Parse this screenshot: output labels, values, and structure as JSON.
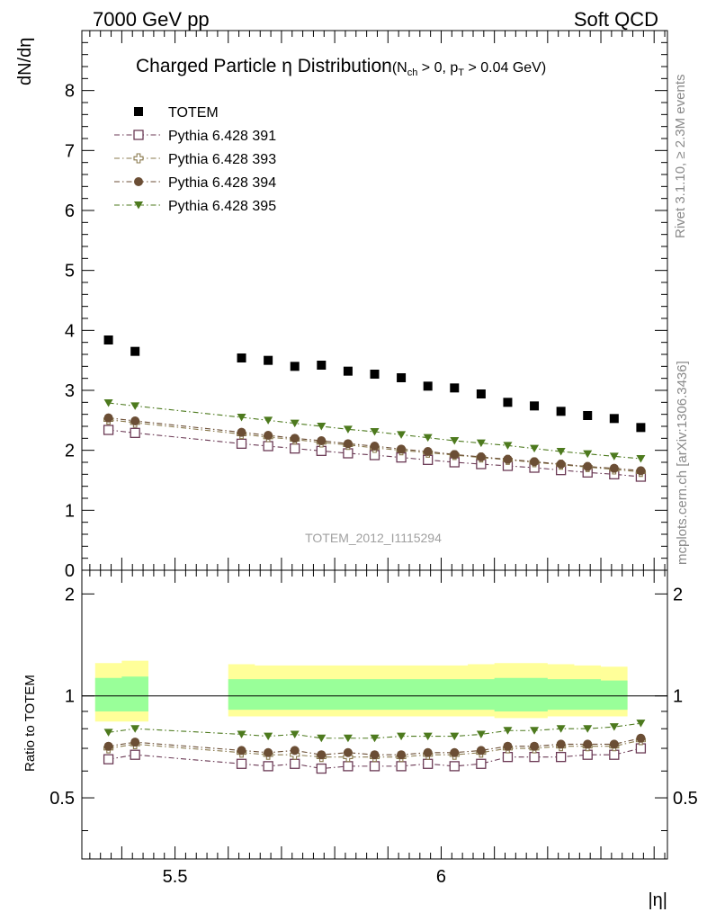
{
  "header": {
    "left": "7000 GeV pp",
    "right": "Soft QCD"
  },
  "side": {
    "rivet": "Rivet 3.1.10, ≥ 2.3M events",
    "mcplots": "mcplots.cern.ch [arXiv:1306.3436]"
  },
  "chart_data": {
    "type": "scatter",
    "title": "Charged Particle η Distribution",
    "title_cut": {
      "nch_var": "N",
      "nch_sub": "ch",
      "nch_cond": " > 0, ",
      "pt_var": "p",
      "pt_sub": "T",
      "pt_cond": " > 0.04 GeV"
    },
    "watermark": "TOTEM_2012_I1115294",
    "xlabel": "|η|",
    "ylabel": "dN/dη",
    "ratio_ylabel": "Ratio to TOTEM",
    "xlim": [
      5.325,
      6.425
    ],
    "ylim": [
      0,
      9
    ],
    "ratio_ylim": [
      0.33,
      2.35
    ],
    "x_ticks": [
      "5.5",
      "6"
    ],
    "y_ticks": [
      "0",
      "1",
      "2",
      "3",
      "4",
      "5",
      "6",
      "7",
      "8"
    ],
    "ratio_ticks_left": [
      "0.5",
      "1",
      "2"
    ],
    "ratio_ticks_right": [
      "0.5",
      "1",
      "2"
    ],
    "x": [
      5.375,
      5.425,
      5.625,
      5.675,
      5.725,
      5.775,
      5.825,
      5.875,
      5.925,
      5.975,
      6.025,
      6.075,
      6.125,
      6.175,
      6.225,
      6.275,
      6.325,
      6.375
    ],
    "data_series": {
      "name": "TOTEM",
      "x": [
        5.375,
        5.425,
        5.625,
        5.675,
        5.725,
        5.775,
        5.825,
        5.875,
        5.925,
        5.975,
        6.025,
        6.075,
        6.125,
        6.175,
        6.225,
        6.275,
        6.325,
        6.375
      ],
      "values": [
        3.84,
        3.65,
        3.54,
        3.5,
        3.4,
        3.42,
        3.32,
        3.27,
        3.21,
        3.07,
        3.04,
        2.94,
        2.8,
        2.74,
        2.65,
        2.58,
        2.53,
        2.38
      ],
      "color": "#000000"
    },
    "error_bands": {
      "x_edges": [
        5.35,
        5.4,
        5.45,
        5.6,
        5.65,
        5.7,
        5.75,
        5.8,
        5.85,
        5.9,
        5.95,
        6.0,
        6.05,
        6.1,
        6.15,
        6.2,
        6.25,
        6.3,
        6.35,
        6.4
      ],
      "gap": [
        5.45,
        5.6
      ],
      "inner_up": [
        1.13,
        1.14,
        1.12,
        1.12,
        1.12,
        1.12,
        1.12,
        1.12,
        1.12,
        1.12,
        1.12,
        1.12,
        1.12,
        1.13,
        1.13,
        1.12,
        1.12,
        1.11
      ],
      "inner_down": [
        0.9,
        0.9,
        0.91,
        0.91,
        0.91,
        0.91,
        0.91,
        0.91,
        0.91,
        0.91,
        0.91,
        0.91,
        0.91,
        0.9,
        0.9,
        0.91,
        0.91,
        0.91
      ],
      "outer_up": [
        1.25,
        1.27,
        1.24,
        1.24,
        1.23,
        1.23,
        1.23,
        1.23,
        1.23,
        1.23,
        1.23,
        1.23,
        1.24,
        1.25,
        1.25,
        1.24,
        1.23,
        1.22
      ],
      "outer_down": [
        0.84,
        0.84,
        0.87,
        0.87,
        0.87,
        0.87,
        0.87,
        0.87,
        0.87,
        0.87,
        0.87,
        0.87,
        0.87,
        0.86,
        0.86,
        0.87,
        0.87,
        0.87
      ],
      "inner_color": "#99ff99",
      "outer_color": "#ffff99"
    },
    "series": [
      {
        "name": "Pythia 6.428 391",
        "marker": "open-square",
        "color": "#6b3a55",
        "values": [
          2.34,
          2.29,
          2.11,
          2.07,
          2.03,
          1.99,
          1.95,
          1.92,
          1.88,
          1.84,
          1.8,
          1.77,
          1.74,
          1.71,
          1.67,
          1.63,
          1.6,
          1.56
        ],
        "ratio": [
          0.65,
          0.67,
          0.63,
          0.62,
          0.63,
          0.61,
          0.62,
          0.62,
          0.62,
          0.63,
          0.62,
          0.63,
          0.66,
          0.66,
          0.66,
          0.67,
          0.67,
          0.7
        ]
      },
      {
        "name": "Pythia 6.428 393",
        "marker": "open-cross",
        "color": "#8a7a4e",
        "values": [
          2.51,
          2.46,
          2.27,
          2.22,
          2.18,
          2.13,
          2.09,
          2.04,
          2.0,
          1.96,
          1.92,
          1.88,
          1.84,
          1.8,
          1.76,
          1.72,
          1.68,
          1.64
        ],
        "ratio": [
          0.7,
          0.72,
          0.68,
          0.67,
          0.67,
          0.66,
          0.66,
          0.66,
          0.66,
          0.67,
          0.67,
          0.68,
          0.7,
          0.7,
          0.71,
          0.71,
          0.71,
          0.74
        ]
      },
      {
        "name": "Pythia 6.428 394",
        "marker": "filled-circle",
        "color": "#6b4e35",
        "values": [
          2.54,
          2.49,
          2.3,
          2.25,
          2.2,
          2.16,
          2.11,
          2.07,
          2.02,
          1.98,
          1.93,
          1.89,
          1.85,
          1.81,
          1.77,
          1.73,
          1.7,
          1.66
        ],
        "ratio": [
          0.71,
          0.73,
          0.69,
          0.68,
          0.69,
          0.67,
          0.68,
          0.67,
          0.67,
          0.68,
          0.68,
          0.69,
          0.71,
          0.71,
          0.72,
          0.72,
          0.72,
          0.75
        ]
      },
      {
        "name": "Pythia 6.428 395",
        "marker": "filled-triangle-down",
        "color": "#4d7a1e",
        "values": [
          2.79,
          2.74,
          2.55,
          2.5,
          2.45,
          2.4,
          2.35,
          2.31,
          2.26,
          2.21,
          2.16,
          2.12,
          2.08,
          2.03,
          1.98,
          1.94,
          1.9,
          1.86
        ],
        "ratio": [
          0.78,
          0.8,
          0.77,
          0.76,
          0.77,
          0.75,
          0.75,
          0.75,
          0.76,
          0.76,
          0.76,
          0.77,
          0.79,
          0.79,
          0.8,
          0.8,
          0.81,
          0.83
        ]
      }
    ]
  }
}
